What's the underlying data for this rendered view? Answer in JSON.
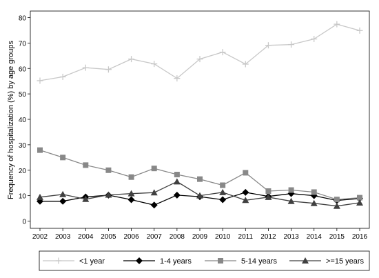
{
  "chart_data": {
    "type": "line",
    "title": "",
    "xlabel": "",
    "ylabel": "Frequency of hospitalization (%) by age groups",
    "x": [
      2002,
      2003,
      2004,
      2005,
      2006,
      2007,
      2008,
      2009,
      2010,
      2011,
      2012,
      2013,
      2014,
      2015,
      2016
    ],
    "ylim": [
      0,
      80
    ],
    "yticks": [
      0,
      10,
      20,
      30,
      40,
      50,
      60,
      70,
      80
    ],
    "grid": false,
    "legend_position": "bottom",
    "series": [
      {
        "name": "<1 year",
        "marker": "plus",
        "color": "#c8c8c8",
        "values": [
          55.2,
          56.7,
          60.3,
          59.6,
          63.7,
          61.8,
          56.1,
          63.7,
          66.4,
          61.7,
          69.1,
          69.4,
          71.6,
          77.4,
          74.9
        ]
      },
      {
        "name": "1-4 years",
        "marker": "diamond",
        "color": "#000000",
        "values": [
          7.8,
          7.8,
          9.5,
          10.2,
          8.4,
          6.3,
          10.2,
          9.6,
          8.4,
          11.3,
          9.7,
          10.8,
          10.0,
          8.1,
          8.9
        ]
      },
      {
        "name": "5-14 years",
        "marker": "square",
        "color": "#888888",
        "values": [
          27.9,
          25.0,
          22.0,
          20.0,
          17.3,
          20.7,
          18.3,
          16.5,
          14.1,
          19.0,
          11.8,
          12.2,
          11.4,
          8.5,
          9.2
        ]
      },
      {
        "name": ">=15 years",
        "marker": "triangle",
        "color": "#404040",
        "values": [
          9.4,
          10.5,
          8.6,
          10.3,
          10.8,
          11.2,
          15.5,
          10.0,
          11.3,
          8.2,
          9.4,
          7.8,
          7.0,
          5.9,
          7.2
        ]
      }
    ]
  }
}
